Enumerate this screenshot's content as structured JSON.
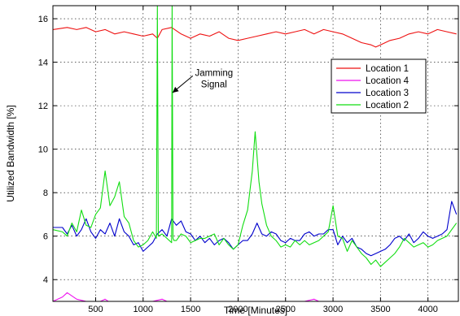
{
  "chart_data": {
    "type": "line",
    "xlabel": "Time [Minutes]",
    "ylabel": "Utilized Bandwidth [%]",
    "xlim": [
      50,
      4320
    ],
    "ylim": [
      3,
      16.6
    ],
    "xticks": [
      500,
      1000,
      1500,
      2000,
      2500,
      3000,
      3500,
      4000
    ],
    "yticks": [
      4,
      6,
      8,
      10,
      12,
      14,
      16
    ],
    "grid": true,
    "legend_position": "top-right",
    "annotation": {
      "lines": [
        "Jamming",
        "Signal"
      ],
      "x": 1180,
      "y": 13.0,
      "arrow_to": [
        1310,
        12.6
      ]
    },
    "series": [
      {
        "name": "Location 1",
        "color": "#ee1111",
        "x": [
          50,
          200,
          300,
          400,
          500,
          600,
          700,
          800,
          900,
          1000,
          1100,
          1150,
          1200,
          1300,
          1400,
          1500,
          1600,
          1700,
          1800,
          1900,
          2000,
          2100,
          2200,
          2300,
          2400,
          2500,
          2600,
          2700,
          2800,
          2900,
          3000,
          3100,
          3200,
          3300,
          3400,
          3450,
          3500,
          3600,
          3700,
          3800,
          3900,
          4000,
          4100,
          4200,
          4300
        ],
        "y": [
          15.5,
          15.6,
          15.5,
          15.6,
          15.4,
          15.5,
          15.3,
          15.4,
          15.3,
          15.2,
          15.3,
          15.1,
          15.5,
          15.6,
          15.3,
          15.1,
          15.3,
          15.2,
          15.4,
          15.1,
          15.0,
          15.1,
          15.2,
          15.3,
          15.4,
          15.3,
          15.4,
          15.5,
          15.3,
          15.5,
          15.4,
          15.3,
          15.1,
          14.9,
          14.8,
          14.7,
          14.8,
          15.0,
          15.1,
          15.3,
          15.4,
          15.3,
          15.5,
          15.4,
          15.3
        ]
      },
      {
        "name": "Location 4",
        "color": "#ee11ee",
        "x": [
          50,
          150,
          200,
          300,
          400,
          500,
          600,
          700,
          800,
          900,
          1000,
          1100,
          1200,
          1300,
          1400,
          1500,
          1600,
          1700,
          1800,
          1900,
          2000,
          2100,
          2200,
          2300,
          2400,
          2500,
          2600,
          2700,
          2800,
          2900,
          3000,
          3100,
          3200,
          3300,
          3400,
          3500,
          3600,
          3700,
          3800,
          3900,
          4000,
          4100,
          4200,
          4300
        ],
        "y": [
          3.0,
          3.2,
          3.4,
          3.1,
          3.0,
          2.9,
          3.1,
          2.8,
          2.7,
          2.9,
          2.8,
          3.0,
          3.1,
          2.9,
          3.0,
          3.0,
          2.9,
          2.8,
          2.7,
          2.6,
          2.4,
          2.6,
          2.7,
          2.9,
          3.0,
          2.9,
          3.0,
          3.0,
          3.1,
          2.9,
          3.0,
          2.9,
          2.7,
          2.6,
          2.5,
          2.5,
          2.7,
          2.9,
          3.0,
          2.9,
          3.0,
          2.9,
          3.0,
          3.0
        ]
      },
      {
        "name": "Location 3",
        "color": "#0000cc",
        "x": [
          50,
          150,
          200,
          250,
          300,
          350,
          400,
          450,
          500,
          550,
          600,
          650,
          700,
          750,
          800,
          850,
          900,
          950,
          1000,
          1050,
          1100,
          1150,
          1200,
          1250,
          1300,
          1350,
          1400,
          1450,
          1500,
          1550,
          1600,
          1650,
          1700,
          1750,
          1800,
          1850,
          1900,
          1950,
          2000,
          2050,
          2100,
          2150,
          2200,
          2250,
          2300,
          2350,
          2400,
          2450,
          2500,
          2550,
          2600,
          2650,
          2700,
          2750,
          2800,
          2850,
          2900,
          2950,
          3000,
          3050,
          3100,
          3150,
          3200,
          3250,
          3300,
          3350,
          3400,
          3450,
          3500,
          3550,
          3600,
          3650,
          3700,
          3750,
          3800,
          3850,
          3900,
          3950,
          4000,
          4050,
          4100,
          4150,
          4200,
          4250,
          4300
        ],
        "y": [
          6.4,
          6.4,
          6.1,
          6.5,
          6.0,
          6.3,
          6.8,
          6.2,
          5.9,
          6.3,
          6.1,
          6.6,
          6.0,
          6.8,
          6.2,
          6.0,
          5.6,
          5.7,
          5.3,
          5.5,
          5.7,
          6.1,
          6.3,
          6.0,
          6.8,
          6.5,
          6.7,
          6.2,
          6.1,
          5.8,
          6.0,
          5.7,
          5.9,
          5.6,
          5.8,
          5.9,
          5.7,
          5.4,
          5.6,
          5.8,
          5.8,
          6.1,
          6.6,
          6.1,
          6.0,
          6.2,
          6.1,
          5.8,
          5.7,
          5.9,
          5.8,
          5.8,
          6.1,
          6.2,
          6.0,
          6.1,
          6.1,
          6.3,
          6.3,
          5.6,
          6.0,
          5.7,
          5.9,
          5.5,
          5.4,
          5.2,
          5.1,
          5.2,
          5.3,
          5.4,
          5.6,
          5.9,
          6.0,
          5.8,
          6.1,
          5.7,
          5.9,
          6.2,
          6.0,
          5.9,
          6.0,
          6.1,
          6.3,
          7.6,
          7.0
        ]
      },
      {
        "name": "Location 2",
        "color": "#11dd11",
        "x": [
          50,
          150,
          200,
          250,
          300,
          350,
          400,
          450,
          500,
          550,
          600,
          650,
          700,
          750,
          800,
          850,
          900,
          950,
          1000,
          1050,
          1100,
          1140,
          1150,
          1160,
          1200,
          1250,
          1300,
          1305,
          1315,
          1325,
          1350,
          1400,
          1450,
          1500,
          1550,
          1600,
          1650,
          1700,
          1750,
          1800,
          1850,
          1900,
          1950,
          2000,
          2050,
          2100,
          2150,
          2180,
          2220,
          2250,
          2300,
          2350,
          2400,
          2450,
          2500,
          2550,
          2600,
          2650,
          2700,
          2750,
          2800,
          2850,
          2900,
          2950,
          3000,
          3050,
          3100,
          3150,
          3200,
          3250,
          3300,
          3350,
          3400,
          3450,
          3500,
          3550,
          3600,
          3650,
          3700,
          3750,
          3800,
          3850,
          3900,
          3950,
          4000,
          4050,
          4100,
          4150,
          4200,
          4250,
          4300
        ],
        "y": [
          6.3,
          6.2,
          6.0,
          6.6,
          6.2,
          7.2,
          6.5,
          6.4,
          7.0,
          7.3,
          9.0,
          7.4,
          7.8,
          8.5,
          6.9,
          6.6,
          5.8,
          5.5,
          5.6,
          5.8,
          6.2,
          5.9,
          16.6,
          6.0,
          6.1,
          5.9,
          5.7,
          16.6,
          5.9,
          5.8,
          5.8,
          6.1,
          6.0,
          5.7,
          5.8,
          5.9,
          5.9,
          6.0,
          6.1,
          5.6,
          5.9,
          5.6,
          5.4,
          5.6,
          6.5,
          7.2,
          9.0,
          10.8,
          8.5,
          7.5,
          6.5,
          6.0,
          5.8,
          5.5,
          5.6,
          5.5,
          5.8,
          5.6,
          5.8,
          5.6,
          5.7,
          5.8,
          6.0,
          6.2,
          7.4,
          6.0,
          5.9,
          5.3,
          5.8,
          5.5,
          5.2,
          5.0,
          4.7,
          4.9,
          4.6,
          4.8,
          5.0,
          5.2,
          5.5,
          5.9,
          5.7,
          5.5,
          5.6,
          5.7,
          5.5,
          5.6,
          5.8,
          5.9,
          6.0,
          6.3,
          6.6
        ]
      }
    ]
  }
}
